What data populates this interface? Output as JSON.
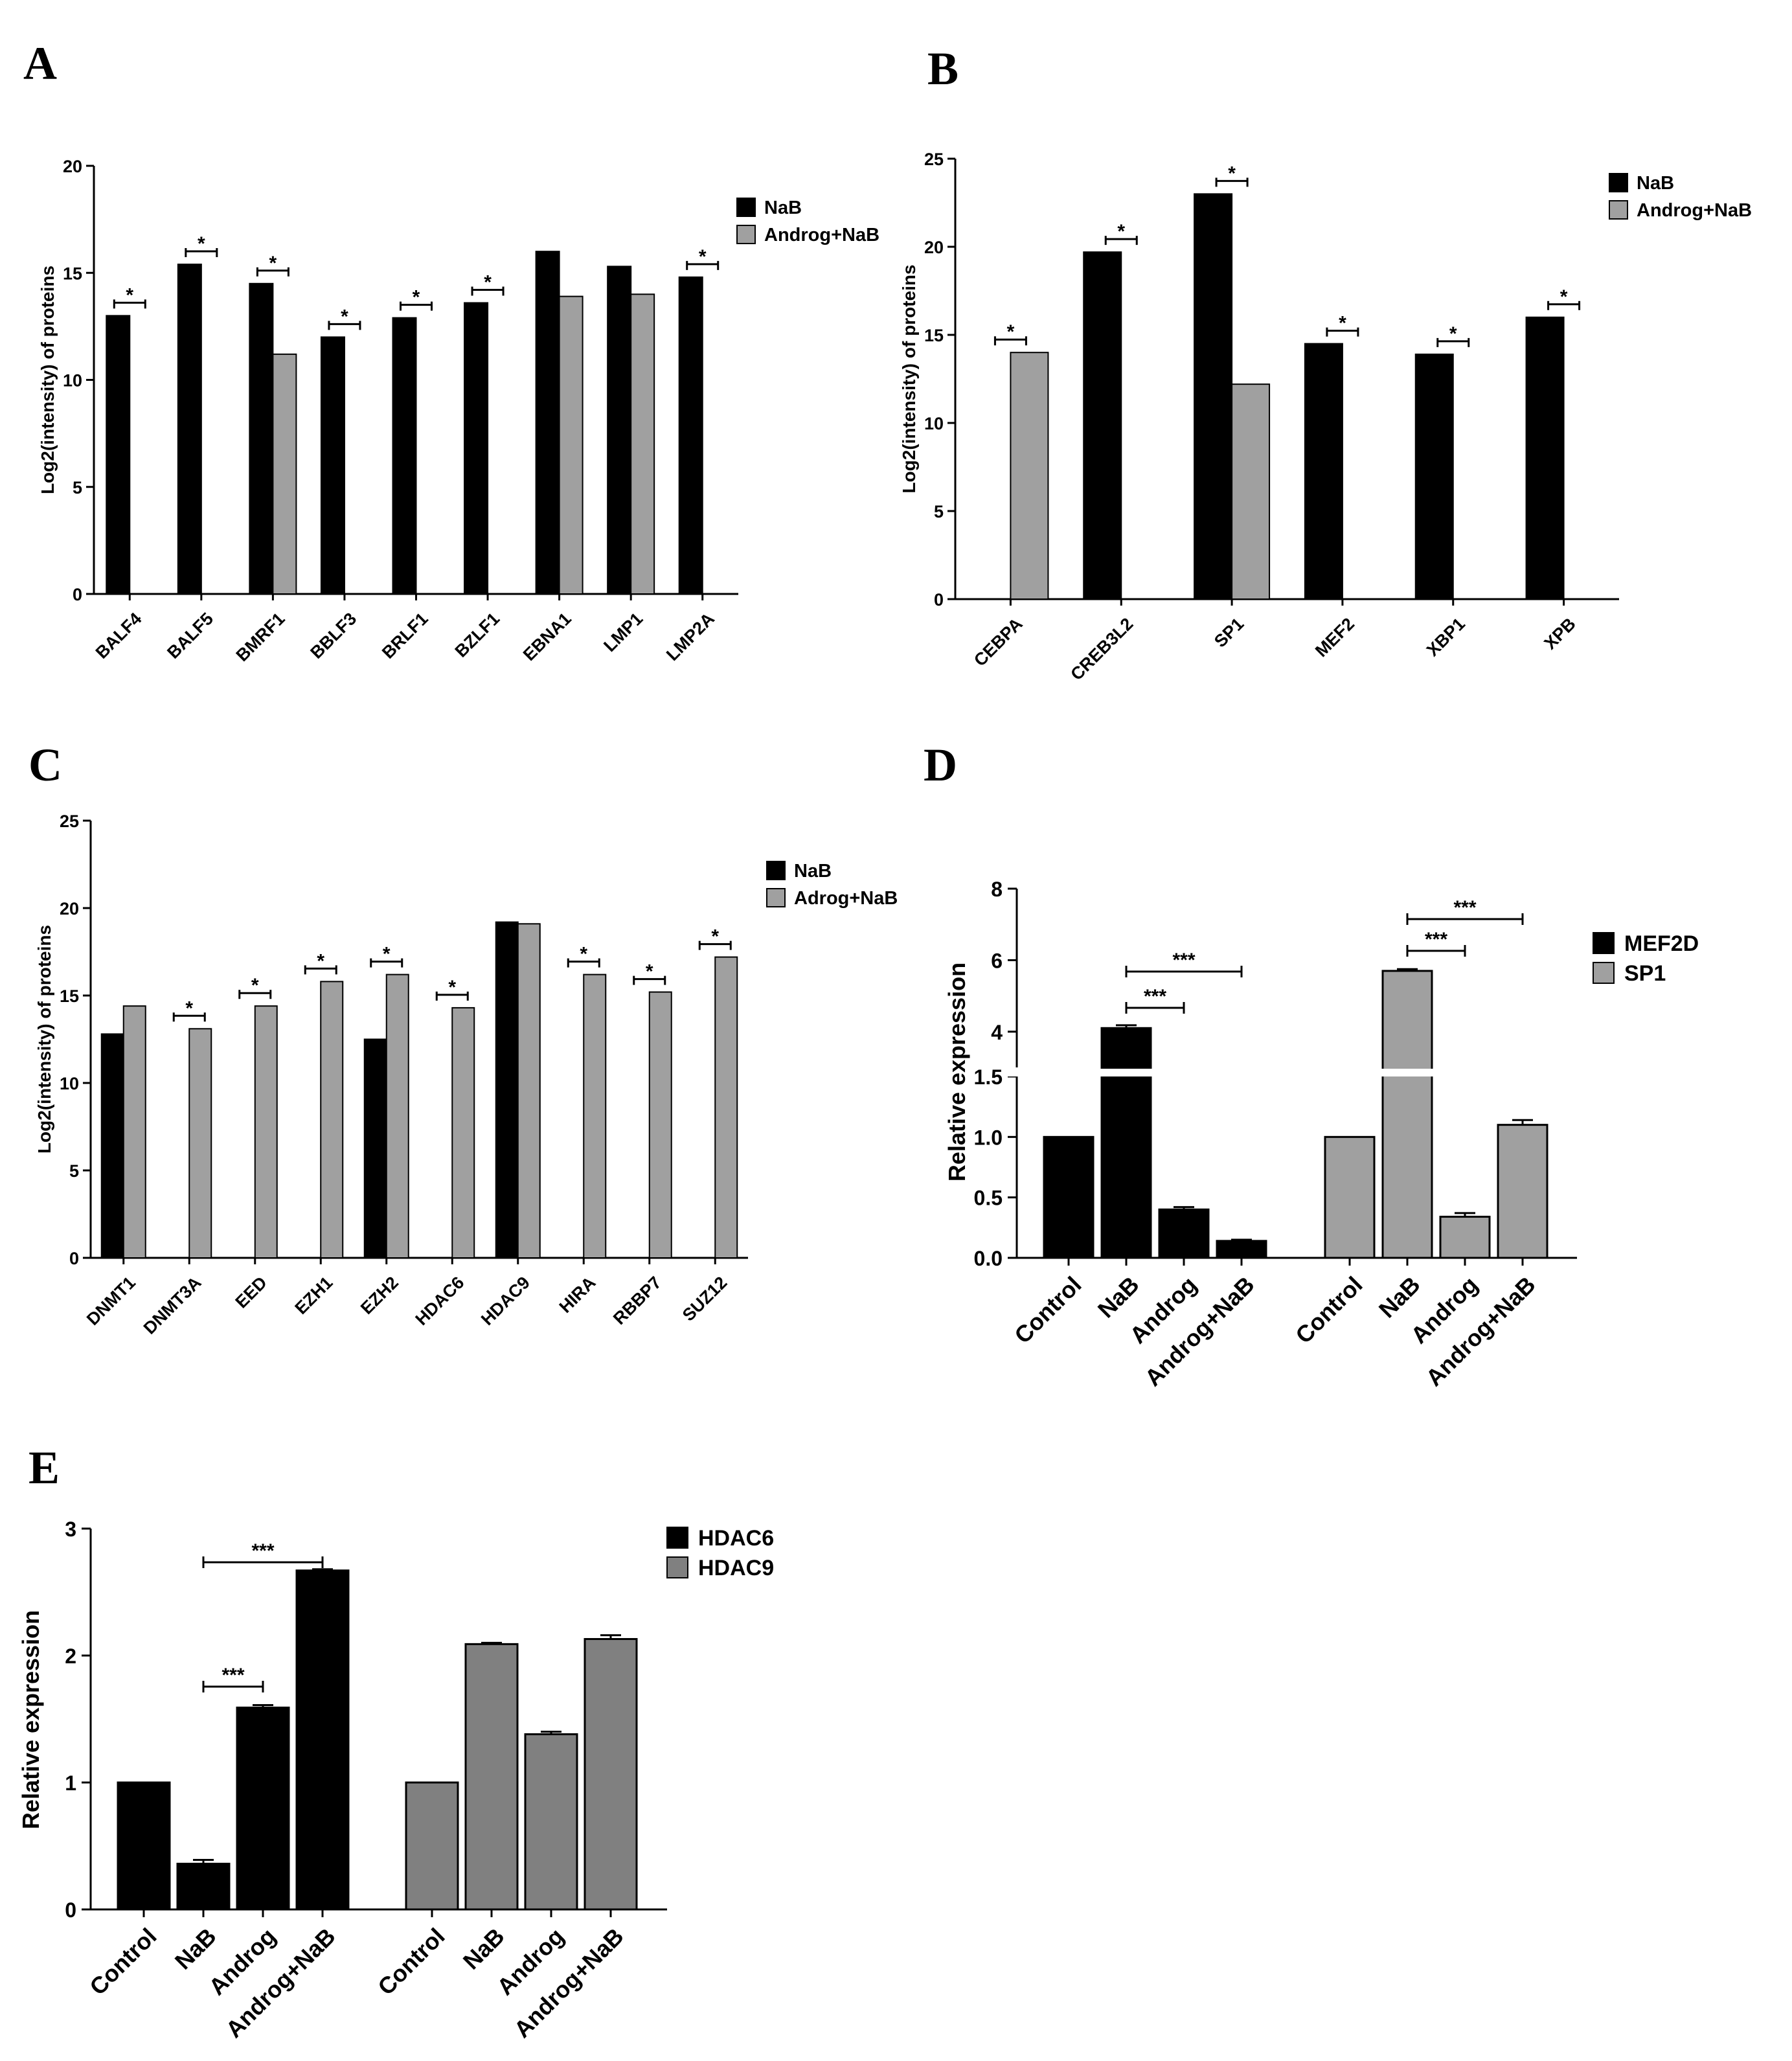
{
  "colors": {
    "black": "#000000",
    "gray": "#a0a0a0",
    "dark_gray": "#808080",
    "white": "#ffffff"
  },
  "chart_data": [
    {
      "panel": "A",
      "type": "bar",
      "ylabel": "Log2(intensity) of proteins",
      "ylim": [
        0,
        20
      ],
      "yticks": [
        "0",
        "5",
        "10",
        "15",
        "20"
      ],
      "categories": [
        "BALF4",
        "BALF5",
        "BMRF1",
        "BBLF3",
        "BRLF1",
        "BZLF1",
        "EBNA1",
        "LMP1",
        "LMP2A"
      ],
      "series": [
        {
          "name": "NaB",
          "color": "#000000",
          "values": [
            13.0,
            15.4,
            14.5,
            12.0,
            12.9,
            13.6,
            16.0,
            15.3,
            14.8
          ]
        },
        {
          "name": "Androg+NaB",
          "color": "#a0a0a0",
          "values": [
            0,
            0,
            11.2,
            0,
            0,
            0,
            13.9,
            14.0,
            0
          ]
        }
      ],
      "significance": [
        {
          "category": 0,
          "label": "*"
        },
        {
          "category": 1,
          "label": "*"
        },
        {
          "category": 2,
          "label": "*"
        },
        {
          "category": 3,
          "label": "*"
        },
        {
          "category": 4,
          "label": "*"
        },
        {
          "category": 5,
          "label": "*"
        },
        {
          "category": 8,
          "label": "*"
        }
      ],
      "legend": [
        "NaB",
        "Androg+NaB"
      ],
      "legend_position": "top-right"
    },
    {
      "panel": "B",
      "type": "bar",
      "ylabel": "Log2(intensity) of proteins",
      "ylim": [
        0,
        25
      ],
      "yticks": [
        "0",
        "5",
        "10",
        "15",
        "20",
        "25"
      ],
      "categories": [
        "CEBPA",
        "CREB3L2",
        "SP1",
        "MEF2",
        "XBP1",
        "XPB"
      ],
      "series": [
        {
          "name": "NaB",
          "color": "#000000",
          "values": [
            0,
            19.7,
            23.0,
            14.5,
            13.9,
            16.0
          ]
        },
        {
          "name": "Androg+NaB",
          "color": "#a0a0a0",
          "values": [
            14.0,
            0,
            12.2,
            0,
            0,
            0
          ]
        }
      ],
      "significance": [
        {
          "category": 0,
          "label": "*"
        },
        {
          "category": 1,
          "label": "*"
        },
        {
          "category": 2,
          "label": "*"
        },
        {
          "category": 3,
          "label": "*"
        },
        {
          "category": 4,
          "label": "*"
        },
        {
          "category": 5,
          "label": "*"
        }
      ],
      "legend": [
        "NaB",
        "Androg+NaB"
      ],
      "legend_position": "top-right"
    },
    {
      "panel": "C",
      "type": "bar",
      "ylabel": "Log2(intensity) of proteins",
      "ylim": [
        0,
        25
      ],
      "yticks": [
        "0",
        "5",
        "10",
        "15",
        "20",
        "25"
      ],
      "categories": [
        "DNMT1",
        "DNMT3A",
        "EED",
        "EZH1",
        "EZH2",
        "HDAC6",
        "HDAC9",
        "HIRA",
        "RBBP7",
        "SUZ12"
      ],
      "series": [
        {
          "name": "NaB",
          "color": "#000000",
          "values": [
            12.8,
            0,
            0,
            0,
            12.5,
            0,
            19.2,
            0,
            0,
            0
          ]
        },
        {
          "name": "Adrog+NaB",
          "color": "#a0a0a0",
          "values": [
            14.4,
            13.1,
            14.4,
            15.8,
            16.2,
            14.3,
            19.1,
            16.2,
            15.2,
            17.2
          ]
        }
      ],
      "significance": [
        {
          "category": 1,
          "label": "*"
        },
        {
          "category": 2,
          "label": "*"
        },
        {
          "category": 3,
          "label": "*"
        },
        {
          "category": 4,
          "label": "*"
        },
        {
          "category": 5,
          "label": "*"
        },
        {
          "category": 7,
          "label": "*"
        },
        {
          "category": 8,
          "label": "*"
        },
        {
          "category": 9,
          "label": "*"
        }
      ],
      "legend": [
        "NaB",
        "Adrog+NaB"
      ],
      "legend_position": "top-right"
    },
    {
      "panel": "D",
      "type": "bar",
      "ylabel": "Relative expression",
      "broken_axis": {
        "lower": [
          0,
          1.5
        ],
        "upper": [
          3,
          8
        ]
      },
      "yticks_lower": [
        "0.0",
        "0.5",
        "1.0",
        "1.5"
      ],
      "yticks_upper": [
        "4",
        "6",
        "8"
      ],
      "groups": [
        {
          "name": "MEF2D",
          "color": "#000000",
          "categories": [
            "Control",
            "NaB",
            "Androg",
            "Androg+NaB"
          ],
          "values": [
            1.0,
            4.1,
            0.4,
            0.14
          ],
          "errors": [
            0,
            0.08,
            0.02,
            0.01
          ]
        },
        {
          "name": "SP1",
          "color": "#a0a0a0",
          "categories": [
            "Control",
            "NaB",
            "Androg",
            "Androg+NaB"
          ],
          "values": [
            1.0,
            5.7,
            0.34,
            1.1
          ],
          "errors": [
            0,
            0.05,
            0.03,
            0.04
          ]
        }
      ],
      "significance": [
        {
          "group": 0,
          "from": 1,
          "to": 2,
          "label": "***"
        },
        {
          "group": 0,
          "from": 1,
          "to": 3,
          "label": "***"
        },
        {
          "group": 1,
          "from": 1,
          "to": 2,
          "label": "***"
        },
        {
          "group": 1,
          "from": 1,
          "to": 3,
          "label": "***"
        }
      ],
      "legend": [
        "MEF2D",
        "SP1"
      ],
      "legend_position": "top-right"
    },
    {
      "panel": "E",
      "type": "bar",
      "ylabel": "Relative expression",
      "ylim": [
        0,
        3
      ],
      "yticks": [
        "0",
        "1",
        "2",
        "3"
      ],
      "groups": [
        {
          "name": "HDAC6",
          "color": "#000000",
          "categories": [
            "Control",
            "NaB",
            "Androg",
            "Androg+NaB"
          ],
          "values": [
            1.0,
            0.36,
            1.59,
            2.67
          ],
          "errors": [
            0,
            0.03,
            0.02,
            0.01
          ]
        },
        {
          "name": "HDAC9",
          "color": "#808080",
          "categories": [
            "Control",
            "NaB",
            "Androg",
            "Androg+NaB"
          ],
          "values": [
            1.0,
            2.09,
            1.38,
            2.13
          ],
          "errors": [
            0,
            0.01,
            0.02,
            0.03
          ]
        }
      ],
      "significance": [
        {
          "group": 0,
          "from": 1,
          "to": 2,
          "label": "***"
        },
        {
          "group": 0,
          "from": 1,
          "to": 3,
          "label": "***"
        }
      ],
      "legend": [
        "HDAC6",
        "HDAC9"
      ],
      "legend_position": "top-right"
    }
  ]
}
